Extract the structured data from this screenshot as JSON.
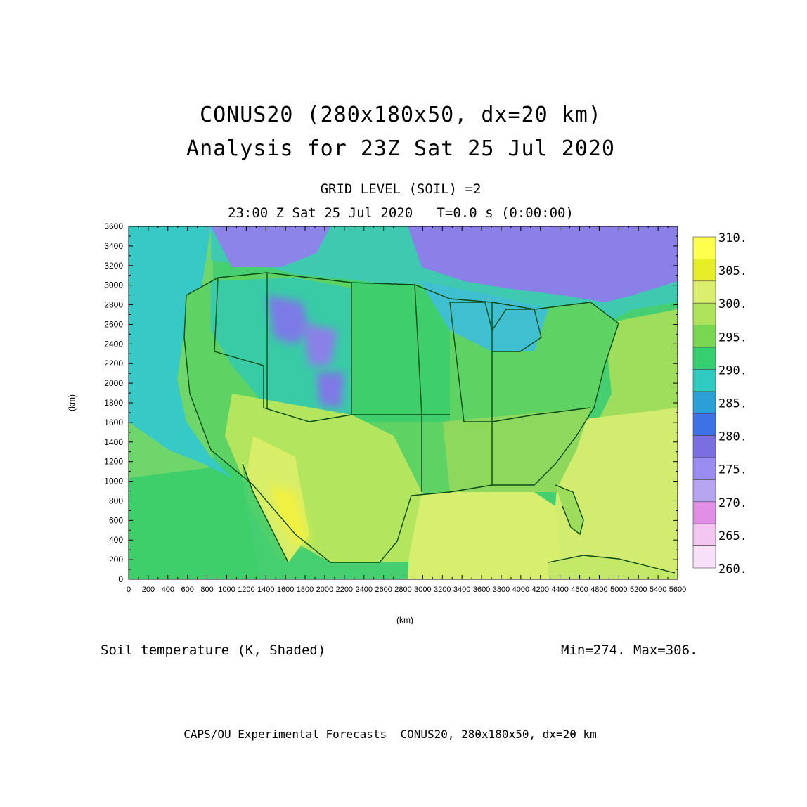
{
  "header": {
    "title_line1": "CONUS20 (280x180x50, dx=20 km)",
    "title_line2": "Analysis for 23Z Sat 25 Jul 2020",
    "subtitle_line1": "GRID LEVEL (SOIL) =2",
    "subtitle_line2": "23:00 Z Sat 25 Jul 2020   T=0.0 s (0:00:00)"
  },
  "axes": {
    "x_label": "(km)",
    "y_label": "(km)",
    "x_ticks": [
      "0",
      "200",
      "400",
      "600",
      "800",
      "1000",
      "1200",
      "1400",
      "1600",
      "1800",
      "2000",
      "2200",
      "2400",
      "2600",
      "2800",
      "3000",
      "3200",
      "3400",
      "3600",
      "3800",
      "4000",
      "4200",
      "4400",
      "4600",
      "4800",
      "5000",
      "5200",
      "5400",
      "5600"
    ],
    "y_ticks": [
      "0",
      "200",
      "400",
      "600",
      "800",
      "1000",
      "1200",
      "1400",
      "1600",
      "1800",
      "2000",
      "2200",
      "2400",
      "2600",
      "2800",
      "3000",
      "3200",
      "3400",
      "3600"
    ],
    "x_range": [
      0,
      5600
    ],
    "y_range": [
      0,
      3600
    ]
  },
  "colorbar": {
    "labels": [
      "310.",
      "305.",
      "300.",
      "295.",
      "290.",
      "285.",
      "280.",
      "275.",
      "270.",
      "265.",
      "260."
    ],
    "colors": [
      "#ffff4d",
      "#e6ee28",
      "#dcee6e",
      "#aee25a",
      "#78d650",
      "#36cf70",
      "#2dcbc0",
      "#2aa0d6",
      "#3d72e6",
      "#7a6ee0",
      "#9a8cf0",
      "#b6a6f0",
      "#e08ee6",
      "#f2c6f0",
      "#f8e0f8"
    ]
  },
  "caption": {
    "field": "Soil temperature (K, Shaded)",
    "stats": "Min=274. Max=306."
  },
  "footer": "CAPS/OU Experimental Forecasts  CONUS20, 280x180x50, dx=20 km",
  "colors": {
    "ocean_pacific": "#6fd46a",
    "ocean_atlantic_south": "#d2ec70",
    "ocean_atlantic_north": "#98de5c",
    "pacific_coast": "#35c9c4",
    "canada_north": "#8a80e8",
    "plains": "#42cf70",
    "southwest": "#c4e864",
    "desert_hot": "#f0f040",
    "border": "#0a4a14"
  }
}
